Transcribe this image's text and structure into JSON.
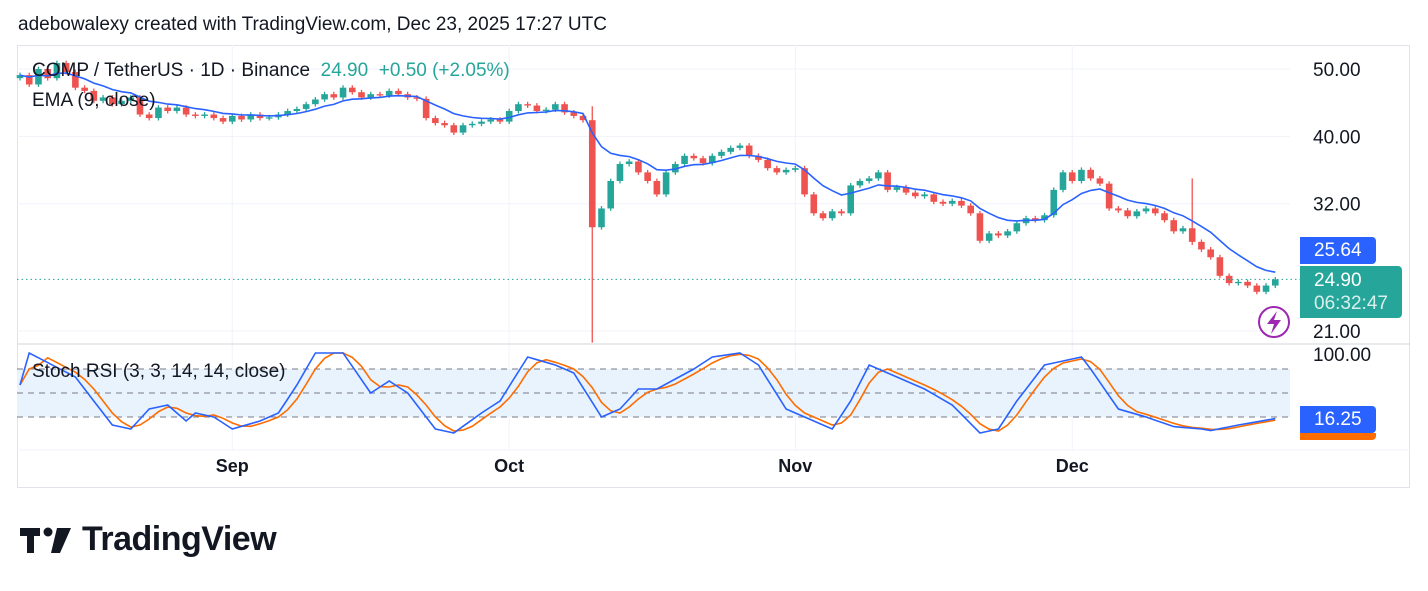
{
  "header": {
    "text": "adebowalexy created with TradingView.com, Dec 23, 2025 17:27 UTC"
  },
  "legend": {
    "symbol": "COMP / TetherUS · 1D · Binance",
    "last": "24.90",
    "change": "+0.50 (+2.05%)",
    "ema": "EMA (9, close)",
    "stoch": "Stoch RSI (3, 3, 14, 14, close)"
  },
  "tags": {
    "ema": "25.64",
    "price": "24.90",
    "countdown": "06:32:47",
    "stoch": "16.25"
  },
  "brand": {
    "name": "TradingView"
  },
  "colors": {
    "up": "#26a69a",
    "down": "#ef5350",
    "ema": "#2962ff",
    "stoch_k": "#2962ff",
    "stoch_d": "#ff6d00",
    "alert": "#9c27b0"
  },
  "icons": {
    "alert": "lightning-alert-icon",
    "logo": "tradingview-logo-icon"
  },
  "chart_data": [
    {
      "type": "candlestick",
      "scale": "log",
      "start_date": "2025-08-09",
      "interval": "1D",
      "price_ticks": [
        50,
        40,
        32,
        21
      ],
      "time_labels": [
        {
          "date": "2025-09-01",
          "label": "Sep"
        },
        {
          "date": "2025-10-01",
          "label": "Oct"
        },
        {
          "date": "2025-11-01",
          "label": "Nov"
        },
        {
          "date": "2025-12-01",
          "label": "Dec"
        }
      ],
      "close": [
        49,
        47.5,
        50,
        48.5,
        51,
        49.5,
        47,
        46.5,
        45,
        45.5,
        44.5,
        45,
        45.5,
        43,
        42.5,
        44,
        43.5,
        44,
        43,
        42.8,
        43,
        42.5,
        42,
        42.8,
        42.3,
        43,
        42.5,
        42.6,
        43,
        43.5,
        43.8,
        44.5,
        45.2,
        46,
        45.5,
        47,
        46.3,
        45.5,
        46,
        45.8,
        46.5,
        46,
        45.5,
        45.3,
        42.5,
        41.8,
        41.5,
        40.5,
        41.5,
        41.7,
        42,
        42.3,
        42,
        43.5,
        44.5,
        44.3,
        43.5,
        43.7,
        44.5,
        43.3,
        42.8,
        42.2,
        29.6,
        31.5,
        34.5,
        36.5,
        36.8,
        35.5,
        34.5,
        33,
        35.5,
        36.5,
        37.5,
        37.2,
        36.6,
        37.5,
        38,
        38.5,
        38.8,
        37.5,
        37,
        36,
        35.5,
        35.8,
        36,
        33,
        31,
        30.5,
        31.2,
        31,
        34,
        34.5,
        34.8,
        35.5,
        33.5,
        33.8,
        33.2,
        32.8,
        33,
        32.2,
        32,
        32.3,
        31.8,
        31,
        28.3,
        29,
        28.8,
        29.2,
        30,
        30.5,
        30.3,
        30.8,
        33.5,
        35.5,
        34.5,
        35.8,
        34.8,
        34.2,
        31.5,
        31.3,
        30.7,
        31.2,
        31.5,
        31,
        30.3,
        29.2,
        29.5,
        28.2,
        27.5,
        26.8,
        25.2,
        24.6,
        24.7,
        24.4,
        23.9,
        24.4,
        24.9
      ],
      "notable_wicks": [
        {
          "date": "2025-10-10",
          "high": 44.2,
          "low": 20.2
        },
        {
          "date": "2025-12-14",
          "high": 34.8,
          "low": 27.9
        }
      ],
      "ema_period": 9
    },
    {
      "type": "line",
      "title": "Stoch RSI (3, 3, 14, 14, close)",
      "ylim": [
        0,
        100
      ],
      "axis_ticks": [
        100
      ],
      "bands": [
        80,
        50,
        20
      ],
      "k_points": [
        [
          "2025-08-09",
          60
        ],
        [
          "2025-08-10",
          100
        ],
        [
          "2025-08-15",
          70
        ],
        [
          "2025-08-19",
          10
        ],
        [
          "2025-08-21",
          5
        ],
        [
          "2025-08-23",
          30
        ],
        [
          "2025-08-25",
          35
        ],
        [
          "2025-08-27",
          15
        ],
        [
          "2025-08-28",
          25
        ],
        [
          "2025-08-30",
          20
        ],
        [
          "2025-09-01",
          5
        ],
        [
          "2025-09-04",
          15
        ],
        [
          "2025-09-06",
          25
        ],
        [
          "2025-09-08",
          60
        ],
        [
          "2025-09-10",
          100
        ],
        [
          "2025-09-13",
          100
        ],
        [
          "2025-09-16",
          50
        ],
        [
          "2025-09-18",
          65
        ],
        [
          "2025-09-20",
          50
        ],
        [
          "2025-09-23",
          5
        ],
        [
          "2025-09-25",
          0
        ],
        [
          "2025-09-28",
          25
        ],
        [
          "2025-09-30",
          40
        ],
        [
          "2025-10-03",
          95
        ],
        [
          "2025-10-06",
          85
        ],
        [
          "2025-10-08",
          75
        ],
        [
          "2025-10-11",
          20
        ],
        [
          "2025-10-13",
          30
        ],
        [
          "2025-10-15",
          55
        ],
        [
          "2025-10-17",
          55
        ],
        [
          "2025-10-21",
          80
        ],
        [
          "2025-10-23",
          95
        ],
        [
          "2025-10-26",
          100
        ],
        [
          "2025-10-28",
          85
        ],
        [
          "2025-10-31",
          30
        ],
        [
          "2025-11-03",
          15
        ],
        [
          "2025-11-05",
          5
        ],
        [
          "2025-11-07",
          40
        ],
        [
          "2025-11-09",
          85
        ],
        [
          "2025-11-11",
          75
        ],
        [
          "2025-11-15",
          55
        ],
        [
          "2025-11-18",
          35
        ],
        [
          "2025-11-21",
          0
        ],
        [
          "2025-11-23",
          5
        ],
        [
          "2025-11-25",
          40
        ],
        [
          "2025-11-28",
          85
        ],
        [
          "2025-11-30",
          90
        ],
        [
          "2025-12-02",
          95
        ],
        [
          "2025-12-03",
          80
        ],
        [
          "2025-12-06",
          30
        ],
        [
          "2025-12-09",
          20
        ],
        [
          "2025-12-12",
          8
        ],
        [
          "2025-12-15",
          5
        ],
        [
          "2025-12-16",
          3
        ],
        [
          "2025-12-19",
          10
        ],
        [
          "2025-12-23",
          18
        ]
      ],
      "d_smoothing": 3
    }
  ]
}
